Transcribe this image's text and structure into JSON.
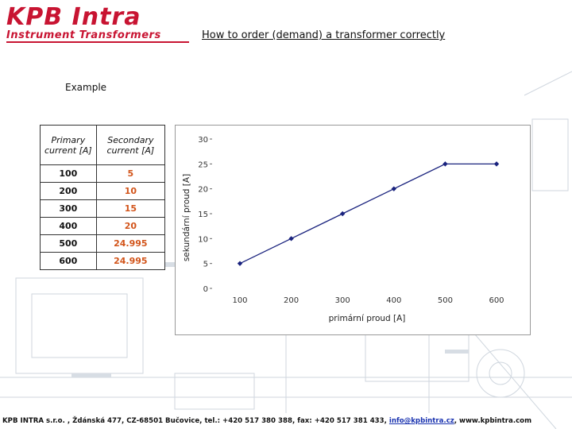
{
  "header": {
    "logo_main": "KPB Intra",
    "logo_sub": "Instrument Transformers",
    "title": "How to order (demand) a transformer correctly"
  },
  "example_label": "Example",
  "table": {
    "headers": [
      "Primary current [A]",
      "Secondary current [A]"
    ],
    "rows": [
      [
        "100",
        "5"
      ],
      [
        "200",
        "10"
      ],
      [
        "300",
        "15"
      ],
      [
        "400",
        "20"
      ],
      [
        "500",
        "24.995"
      ],
      [
        "600",
        "24.995"
      ]
    ]
  },
  "chart_data": {
    "type": "line",
    "title": "",
    "xlabel": "primární proud [A]",
    "ylabel": "sekundární proud [A]",
    "categories": [
      "100",
      "200",
      "300",
      "400",
      "500",
      "600"
    ],
    "series": [
      {
        "values": [
          5,
          10,
          15,
          20,
          24.995,
          24.995
        ]
      }
    ],
    "ylim": [
      0,
      30
    ],
    "yticks": [
      "0",
      "5",
      "10",
      "15",
      "20",
      "25",
      "30"
    ],
    "grid": false,
    "legend": "none",
    "colors": {
      "line": "#1a237e",
      "marker": "#1a237e",
      "plot_border": "#999999"
    }
  },
  "footer": {
    "text_before": "KPB INTRA s.r.o. , Ždánská 477, CZ-68501 Bučovice, tel.: +420 517 380 388, fax: +420 517 381 433, ",
    "email": "info@kpbintra.cz",
    "text_after": ", www.kpbintra.com"
  }
}
